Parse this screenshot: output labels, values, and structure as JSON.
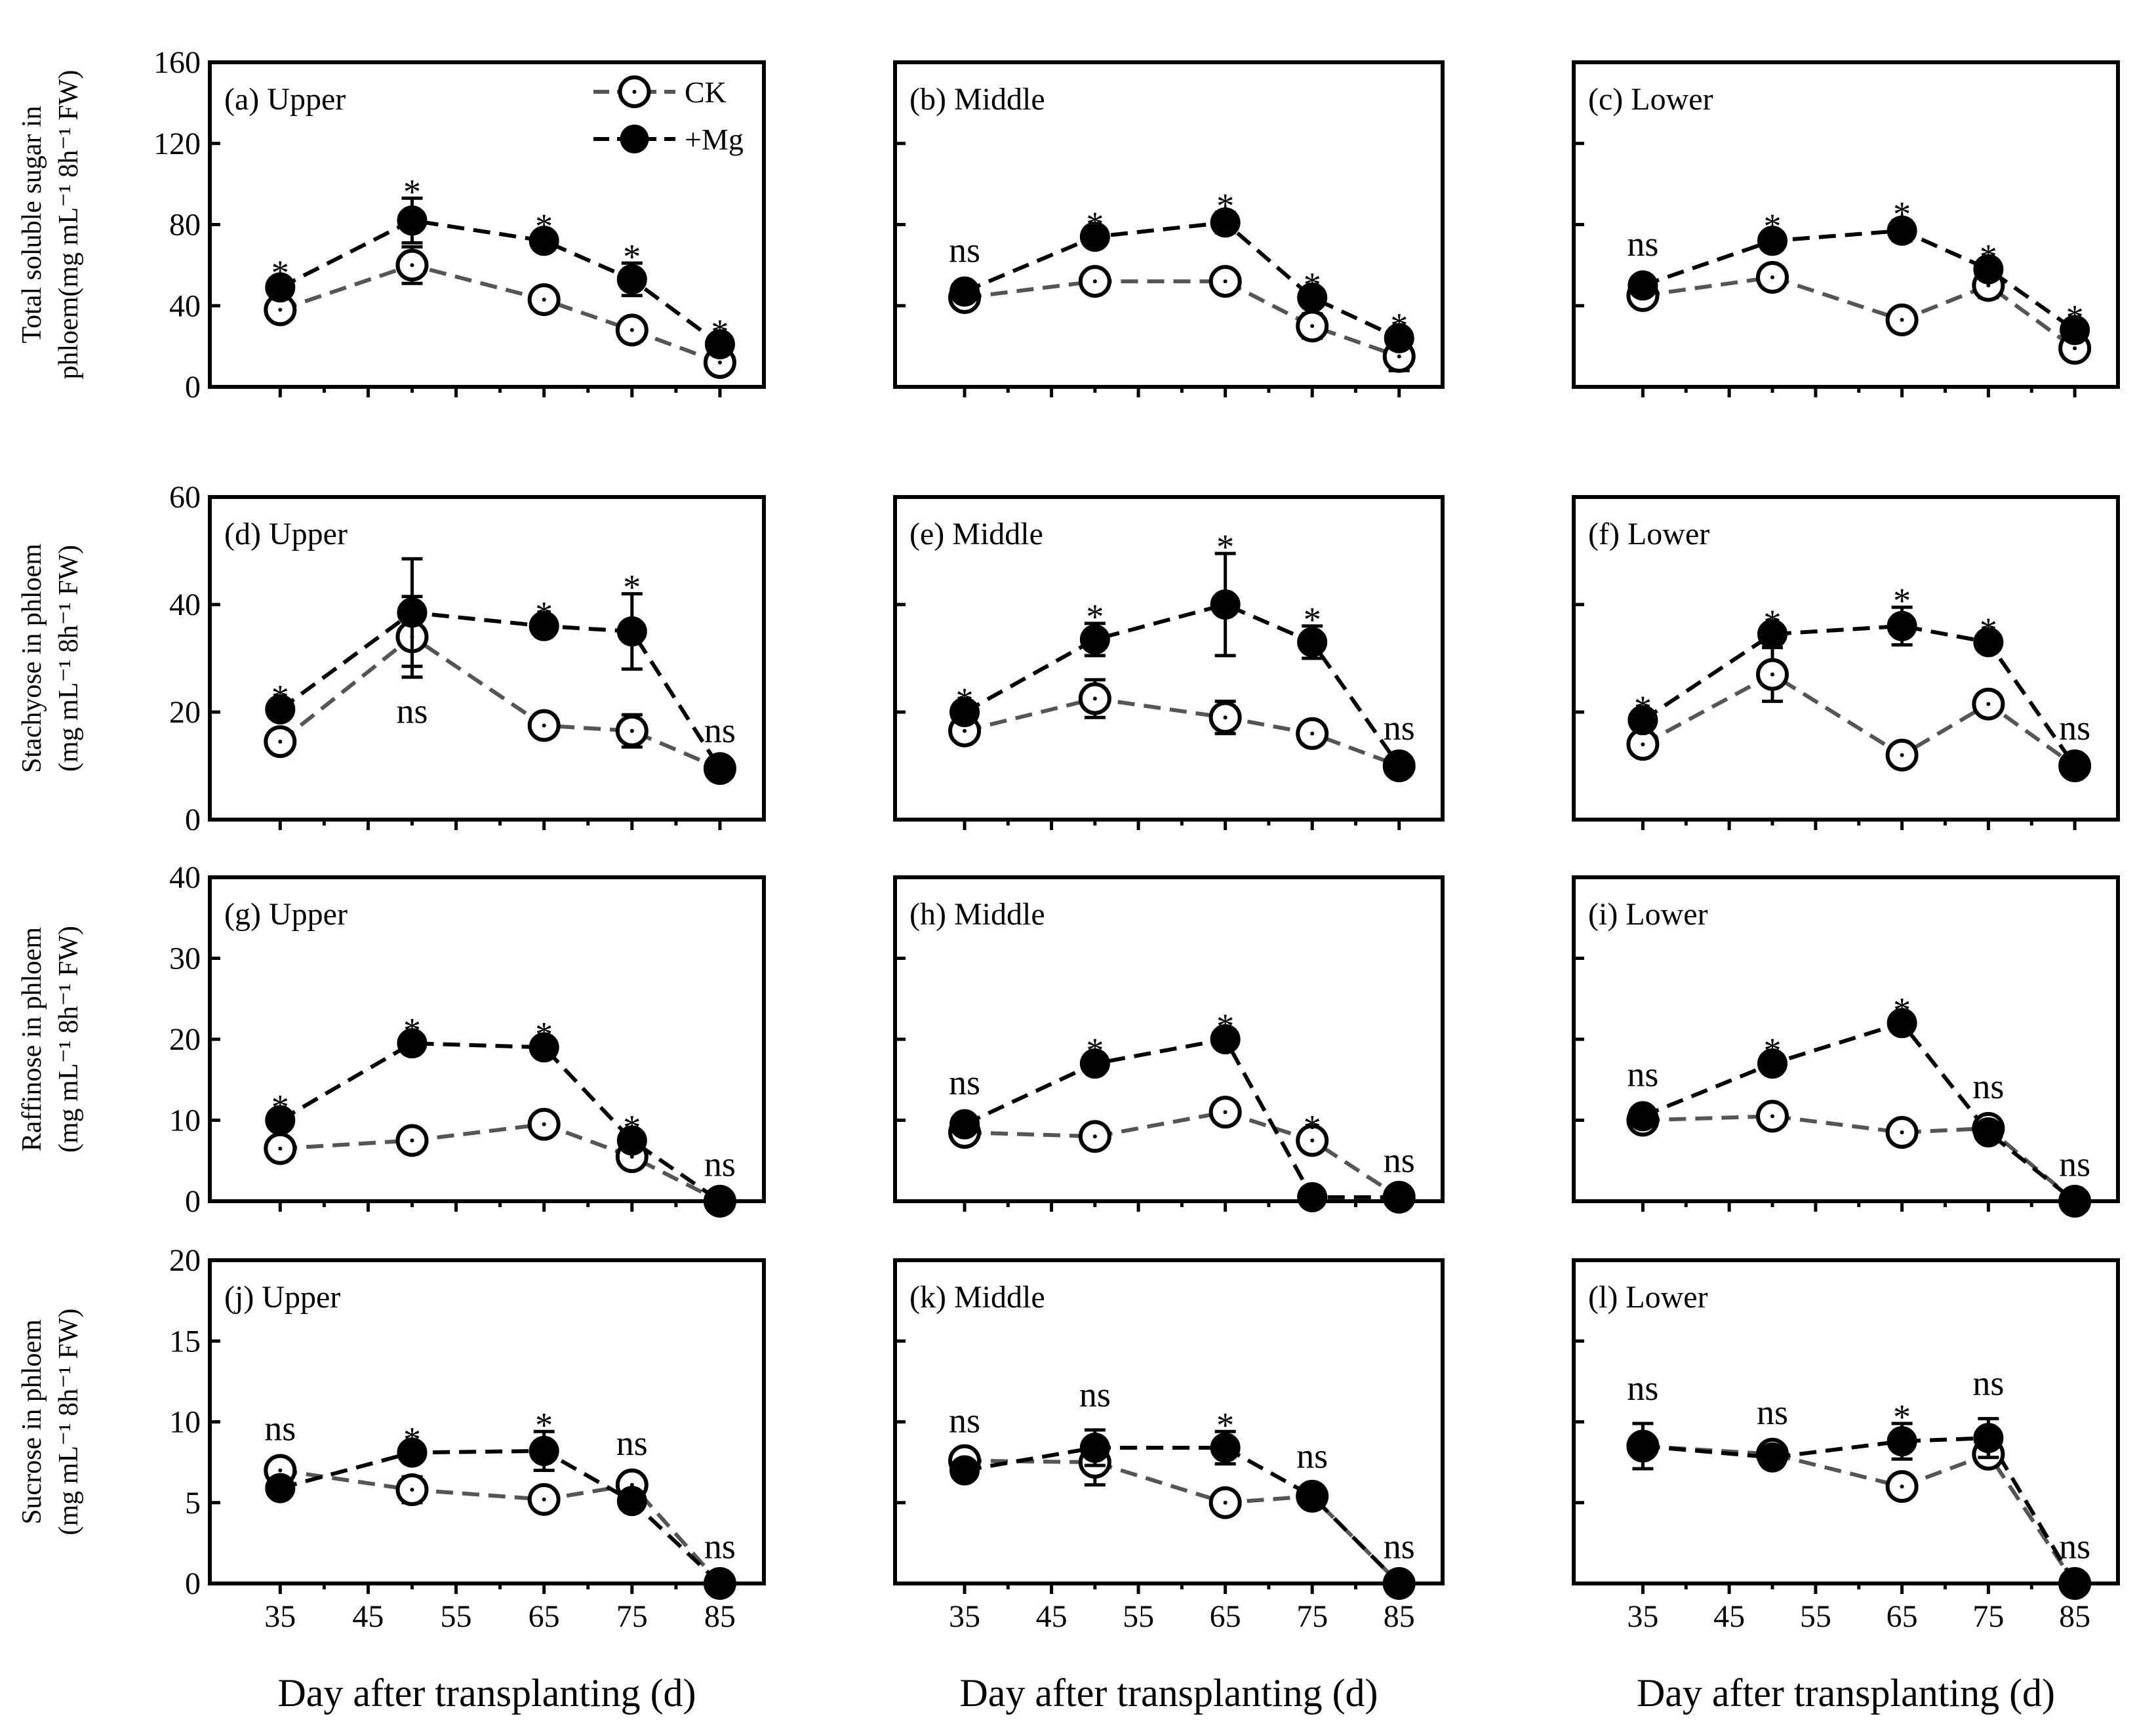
{
  "chart_data": {
    "type": "line",
    "legend": {
      "placement": "top-right",
      "entries": [
        "CK",
        "+Mg"
      ]
    },
    "styles": {
      "CK": {
        "color": "#555555",
        "marker": "open-circle",
        "line": "dashed"
      },
      "+Mg": {
        "color": "#000000",
        "marker": "filled-circle",
        "line": "dashed"
      }
    },
    "x": [
      35,
      50,
      65,
      75,
      85
    ],
    "x_ticks": [
      35,
      45,
      55,
      65,
      75,
      85
    ],
    "xlim": [
      27,
      90
    ],
    "xlabel": "Day after transplanting (d)",
    "rows": [
      {
        "ylabel_lines": [
          "Total soluble sugar  in",
          "phloem(mg mL⁻¹ 8h⁻¹ FW)"
        ],
        "ylim": [
          0,
          160
        ],
        "y_ticks": [
          0,
          40,
          80,
          120,
          160
        ],
        "panels": [
          {
            "label": "(a) Upper",
            "series": [
              {
                "name": "CK",
                "values": [
                  38,
                  60,
                  43,
                  28,
                  12
                ],
                "errors": [
                  4,
                  9,
                  3,
                  3,
                  4
                ]
              },
              {
                "name": "+Mg",
                "values": [
                  49,
                  82,
                  72,
                  53,
                  21
                ],
                "errors": [
                  4,
                  11,
                  4,
                  8,
                  3
                ]
              }
            ],
            "significance": [
              "*",
              "*",
              "*",
              "*",
              "*"
            ]
          },
          {
            "label": "(b) Middle",
            "series": [
              {
                "name": "CK",
                "values": [
                  44,
                  52,
                  52,
                  30,
                  15
                ],
                "errors": [
                  3,
                  3,
                  3,
                  6,
                  7
                ]
              },
              {
                "name": "+Mg",
                "values": [
                  47,
                  74,
                  81,
                  44,
                  24
                ],
                "errors": [
                  3,
                  3,
                  5,
                  3,
                  3
                ]
              }
            ],
            "significance": [
              "ns",
              "*",
              "*",
              "*",
              "*"
            ]
          },
          {
            "label": "(c) Lower",
            "series": [
              {
                "name": "CK",
                "values": [
                  45,
                  54,
                  33,
                  50,
                  19
                ],
                "errors": [
                  3,
                  3,
                  5,
                  6,
                  5
                ]
              },
              {
                "name": "+Mg",
                "values": [
                  50,
                  72,
                  77,
                  58,
                  28
                ],
                "errors": [
                  3,
                  4,
                  5,
                  3,
                  3
                ]
              }
            ],
            "significance": [
              "ns",
              "*",
              "*",
              "*",
              "*"
            ]
          }
        ]
      },
      {
        "ylabel_lines": [
          "Stachyose in phloem",
          "(mg mL⁻¹ 8h⁻¹ FW)"
        ],
        "ylim": [
          0,
          60
        ],
        "y_ticks": [
          0,
          20,
          40,
          60
        ],
        "panels": [
          {
            "label": "(d) Upper",
            "series": [
              {
                "name": "CK",
                "values": [
                  14.5,
                  34,
                  17.5,
                  16.5,
                  9.5
                ],
                "errors": [
                  1.5,
                  7.5,
                  1,
                  3,
                  0.5
                ]
              },
              {
                "name": "+Mg",
                "values": [
                  20.5,
                  38.5,
                  36,
                  35,
                  9.5
                ],
                "errors": [
                  1,
                  10,
                  1,
                  7,
                  0.5
                ]
              }
            ],
            "significance": [
              "*",
              "ns",
              "*",
              "*",
              "ns"
            ]
          },
          {
            "label": "(e) Middle",
            "series": [
              {
                "name": "CK",
                "values": [
                  16.5,
                  22.5,
                  19,
                  16,
                  10
                ],
                "errors": [
                  1,
                  3.5,
                  3,
                  1,
                  0.5
                ]
              },
              {
                "name": "+Mg",
                "values": [
                  20,
                  33.5,
                  40,
                  33,
                  10
                ],
                "errors": [
                  1,
                  3,
                  9.5,
                  3,
                  0.5
                ]
              }
            ],
            "significance": [
              "*",
              "*",
              "*",
              "*",
              "ns"
            ]
          },
          {
            "label": "(f) Lower",
            "series": [
              {
                "name": "CK",
                "values": [
                  14,
                  27,
                  12,
                  21.5,
                  10
                ],
                "errors": [
                  1.5,
                  5,
                  1,
                  1,
                  0.5
                ]
              },
              {
                "name": "+Mg",
                "values": [
                  18.5,
                  34.5,
                  36,
                  33,
                  10
                ],
                "errors": [
                  1,
                  1,
                  3.5,
                  1,
                  0.5
                ]
              }
            ],
            "significance": [
              "*",
              "*",
              "*",
              "*",
              "ns"
            ]
          }
        ]
      },
      {
        "ylabel_lines": [
          "Raffinose in phloem",
          "(mg mL⁻¹ 8h⁻¹ FW)"
        ],
        "ylim": [
          0,
          40
        ],
        "y_ticks": [
          0,
          10,
          20,
          30,
          40
        ],
        "panels": [
          {
            "label": "(g) Upper",
            "series": [
              {
                "name": "CK",
                "values": [
                  6.5,
                  7.5,
                  9.5,
                  5.5,
                  0
                ],
                "errors": [
                  0.8,
                  0.5,
                  0.8,
                  0.8,
                  0.2
                ]
              },
              {
                "name": "+Mg",
                "values": [
                  10,
                  19.5,
                  19,
                  7.5,
                  0
                ],
                "errors": [
                  0.8,
                  0.8,
                  0.8,
                  0.8,
                  0.2
                ]
              }
            ],
            "significance": [
              "*",
              "*",
              "*",
              "*",
              "ns"
            ]
          },
          {
            "label": "(h) Middle",
            "series": [
              {
                "name": "CK",
                "values": [
                  8.5,
                  8,
                  11,
                  7.5,
                  0.5
                ],
                "errors": [
                  0.8,
                  0.5,
                  1,
                  0.8,
                  0.2
                ]
              },
              {
                "name": "+Mg",
                "values": [
                  9.5,
                  17,
                  20,
                  0.5,
                  0.5
                ],
                "errors": [
                  0.8,
                  0.8,
                  0.8,
                  0.3,
                  0.2
                ]
              }
            ],
            "significance": [
              "ns",
              "*",
              "*",
              "*",
              "ns"
            ]
          },
          {
            "label": "(i) Lower",
            "series": [
              {
                "name": "CK",
                "values": [
                  10,
                  10.5,
                  8.5,
                  9,
                  0
                ],
                "errors": [
                  0.8,
                  0.5,
                  0.8,
                  0.8,
                  0.2
                ]
              },
              {
                "name": "+Mg",
                "values": [
                  10.5,
                  17,
                  22,
                  8.5,
                  0
                ],
                "errors": [
                  0.8,
                  0.8,
                  0.8,
                  0.8,
                  0.2
                ]
              }
            ],
            "significance": [
              "ns",
              "*",
              "*",
              "ns",
              "ns"
            ]
          }
        ]
      },
      {
        "ylabel_lines": [
          "Sucrose in phloem",
          "(mg mL⁻¹ 8h⁻¹ FW)"
        ],
        "ylim": [
          0,
          20
        ],
        "y_ticks": [
          0,
          5,
          10,
          15,
          20
        ],
        "panels": [
          {
            "label": "(j) Upper",
            "series": [
              {
                "name": "CK",
                "values": [
                  7,
                  5.8,
                  5.2,
                  6.1,
                  0
                ],
                "errors": [
                  0.4,
                  0.8,
                  0.4,
                  0.4,
                  0.1
                ]
              },
              {
                "name": "+Mg",
                "values": [
                  5.9,
                  8.1,
                  8.2,
                  5.1,
                  0
                ],
                "errors": [
                  0.3,
                  0.4,
                  1.2,
                  0.3,
                  0.1
                ]
              }
            ],
            "significance": [
              "ns",
              "*",
              "*",
              "ns",
              "ns"
            ]
          },
          {
            "label": "(k) Middle",
            "series": [
              {
                "name": "CK",
                "values": [
                  7.6,
                  7.5,
                  5,
                  5.4,
                  0
                ],
                "errors": [
                  0.3,
                  1.4,
                  0.4,
                  0.3,
                  0.1
                ]
              },
              {
                "name": "+Mg",
                "values": [
                  7,
                  8.4,
                  8.4,
                  5.4,
                  0
                ],
                "errors": [
                  0.3,
                  1.1,
                  1,
                  0.3,
                  0.1
                ]
              }
            ],
            "significance": [
              "ns",
              "ns",
              "*",
              "ns",
              "ns"
            ]
          },
          {
            "label": "(l) Lower",
            "series": [
              {
                "name": "CK",
                "values": [
                  8.5,
                  8,
                  6,
                  8,
                  0
                ],
                "errors": [
                  0.5,
                  0.4,
                  0.3,
                  0.5,
                  0.1
                ]
              },
              {
                "name": "+Mg",
                "values": [
                  8.5,
                  7.8,
                  8.8,
                  9,
                  0
                ],
                "errors": [
                  1.4,
                  0.6,
                  1.1,
                  1.2,
                  0.1
                ]
              }
            ],
            "significance": [
              "ns",
              "ns",
              "*",
              "ns",
              "ns"
            ]
          }
        ]
      }
    ]
  }
}
